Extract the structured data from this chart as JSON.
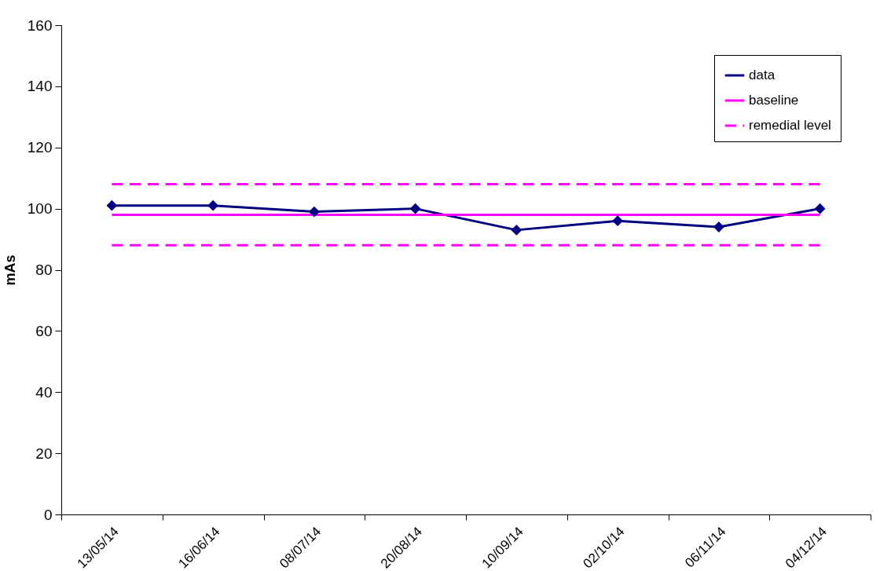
{
  "chart_data": {
    "type": "line",
    "ylabel": "mAs",
    "categories": [
      "13/05/14",
      "16/06/14",
      "08/07/14",
      "20/08/14",
      "10/09/14",
      "02/10/14",
      "06/11/14",
      "04/12/14"
    ],
    "ylim": [
      0,
      160
    ],
    "yticks": [
      0,
      20,
      40,
      60,
      80,
      100,
      120,
      140,
      160
    ],
    "legend": "top right",
    "series": [
      {
        "name": "data",
        "color": "#000080",
        "marker": "diamond",
        "line_style": "solid",
        "values": [
          101,
          101,
          99,
          100,
          93,
          96,
          94,
          100
        ]
      },
      {
        "name": "baseline",
        "color": "#ff00ff",
        "marker": "none",
        "line_style": "solid",
        "values": [
          98,
          98,
          98,
          98,
          98,
          98,
          98,
          98
        ]
      },
      {
        "name": "remedial level",
        "color": "#ff00ff",
        "marker": "none",
        "line_style": "dashed",
        "values": [
          108,
          108,
          108,
          108,
          108,
          108,
          108,
          108
        ]
      },
      {
        "color": "#ff00ff",
        "marker": "none",
        "line_style": "dashed",
        "values": [
          88,
          88,
          88,
          88,
          88,
          88,
          88,
          88
        ]
      }
    ]
  }
}
